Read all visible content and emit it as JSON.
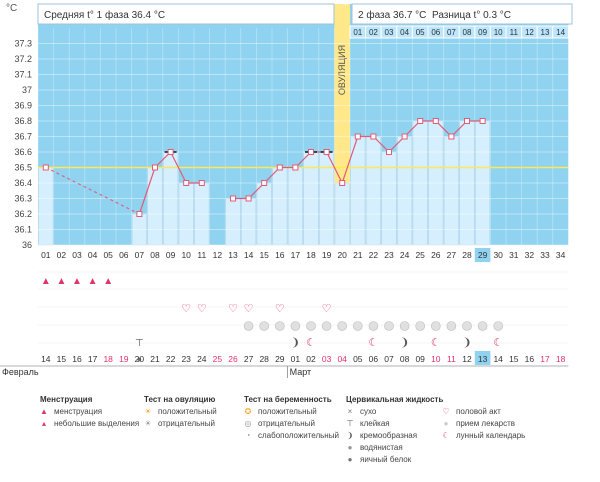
{
  "chart_data": {
    "type": "line",
    "y_unit": "°C",
    "ylim": [
      36.0,
      37.4
    ],
    "y_ticks": [
      "36",
      "36.1",
      "36.2",
      "36.3",
      "36.4",
      "36.5",
      "36.6",
      "36.7",
      "36.8",
      "36.9",
      "37",
      "37.1",
      "37.2",
      "37.3"
    ],
    "cover_line": 36.5,
    "header": {
      "phase1": "Средняя t° 1 фаза 36.4 °C",
      "phase2": "2 фаза 36.7 °C",
      "diff": "Разница t° 0.3 °C"
    },
    "ovulation_label": "ОВУЛЯЦИЯ",
    "ovulation_cycle_day": 20,
    "phase2_day_labels": [
      "01",
      "02",
      "03",
      "04",
      "05",
      "06",
      "07",
      "08",
      "09",
      "10",
      "11",
      "12",
      "13",
      "14"
    ],
    "cycle_days": [
      "01",
      "02",
      "03",
      "04",
      "05",
      "06",
      "07",
      "08",
      "09",
      "10",
      "11",
      "12",
      "13",
      "14",
      "15",
      "16",
      "17",
      "18",
      "19",
      "20",
      "21",
      "22",
      "23",
      "24",
      "25",
      "26",
      "27",
      "28",
      "29",
      "30",
      "31",
      "32",
      "33",
      "34"
    ],
    "current_cycle_day": 29,
    "temperatures": [
      36.5,
      null,
      null,
      null,
      null,
      null,
      36.2,
      36.5,
      36.6,
      36.4,
      36.4,
      null,
      36.3,
      36.3,
      36.4,
      36.5,
      36.5,
      36.6,
      36.6,
      36.4,
      36.7,
      36.7,
      36.6,
      36.7,
      36.8,
      36.8,
      36.7,
      36.8,
      36.8,
      null,
      null,
      null,
      null,
      null
    ],
    "dashed_segment": [
      1,
      7
    ],
    "marked_days": [
      9,
      18,
      19
    ],
    "calendar_dates": [
      "14",
      "15",
      "16",
      "17",
      "18",
      "19",
      "20",
      "21",
      "22",
      "23",
      "24",
      "25",
      "26",
      "27",
      "28",
      "29",
      "01",
      "02",
      "03",
      "04",
      "05",
      "06",
      "07",
      "08",
      "09",
      "10",
      "11",
      "12",
      "13",
      "14",
      "15",
      "16",
      "17",
      "18"
    ],
    "weekend_dates_idx": [
      4,
      5,
      11,
      12,
      18,
      19,
      25,
      26,
      32,
      33
    ],
    "current_date_idx": 28,
    "month_labels": [
      {
        "label": "Февраль",
        "at_day": 1
      },
      {
        "label": "Март",
        "at_day": 17
      }
    ],
    "row_symbols": {
      "menstruation": [
        1,
        2,
        3,
        4,
        5
      ],
      "intercourse": [
        10,
        11,
        13,
        14,
        16,
        19
      ],
      "pill": [
        14,
        15,
        16,
        17,
        18,
        19,
        20,
        21,
        22,
        23,
        24,
        25,
        26,
        27,
        28,
        29,
        30
      ],
      "fluid": [
        {
          "day": 7,
          "type": "sticky"
        },
        {
          "day": 7,
          "type": "egg-white"
        },
        {
          "day": 17,
          "type": "creamy"
        },
        {
          "day": 24,
          "type": "creamy"
        },
        {
          "day": 28,
          "type": "creamy"
        },
        {
          "day": 18,
          "type": "lunar"
        },
        {
          "day": 22,
          "type": "lunar"
        },
        {
          "day": 26,
          "type": "lunar"
        },
        {
          "day": 30,
          "type": "lunar"
        }
      ]
    }
  },
  "legend": {
    "menstruation": {
      "title": "Менструация",
      "items": [
        "менструация",
        "небольшие выделения"
      ]
    },
    "ovulation_test": {
      "title": "Тест на овуляцию",
      "items": [
        "положительный",
        "отрицательный"
      ]
    },
    "pregnancy_test": {
      "title": "Тест на беременность",
      "items": [
        "положительный",
        "отрицательный",
        "слабоположительный"
      ]
    },
    "cervical_fluid": {
      "title": "Цервикальная жидкость",
      "items": [
        "сухо",
        "клейкая",
        "кремообразная",
        "водянистая",
        "яичный белок"
      ]
    },
    "other": {
      "items": [
        "половой акт",
        "прием лекарств",
        "лунный календарь"
      ]
    }
  },
  "colors": {
    "sky": "#8fd3f0",
    "bar": "#d6efff",
    "bar_edge": "#a9cfe8",
    "line": "#e05c78",
    "cover": "#ffe75a",
    "ovulation": "#ffe88a",
    "weekend": "#e0306a"
  }
}
